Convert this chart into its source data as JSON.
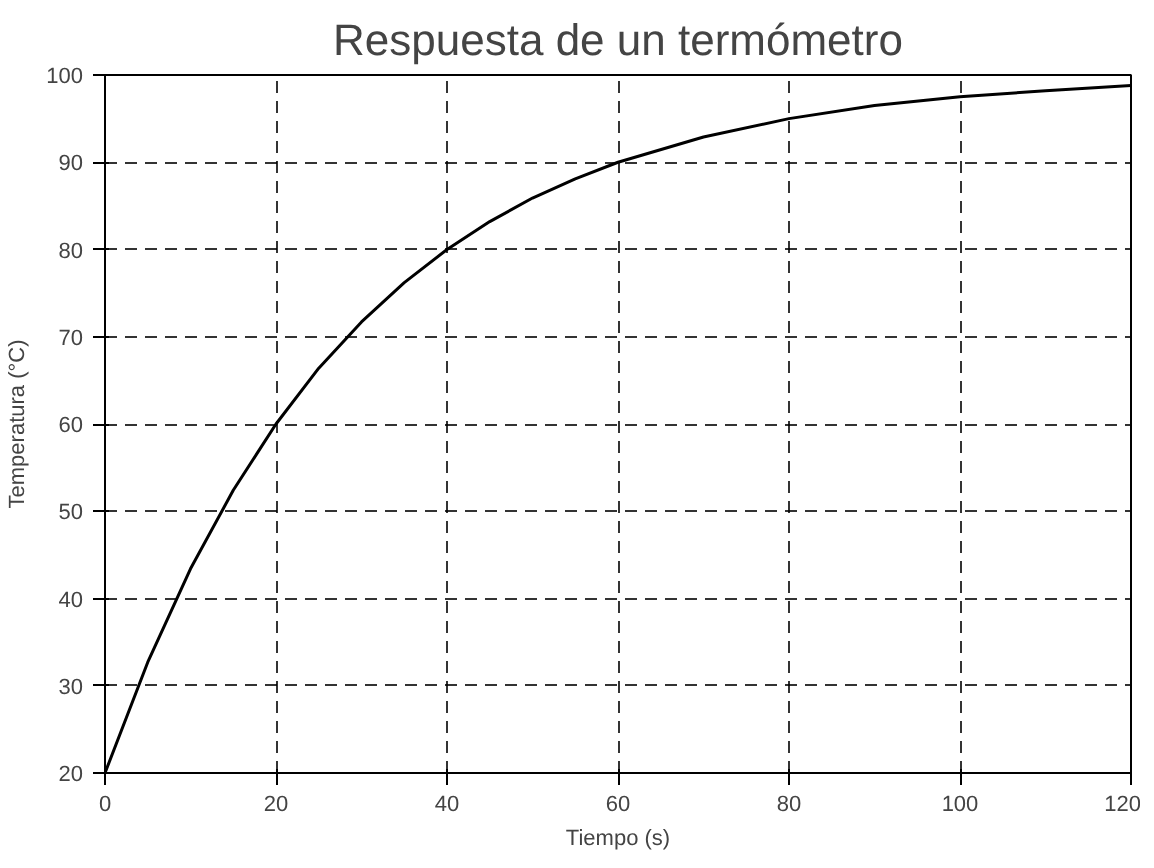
{
  "chart_data": {
    "type": "line",
    "title": "Respuesta de un termómetro",
    "xlabel": "Tiempo (s)",
    "ylabel": "Temperatura (°C)",
    "x": [
      0,
      5,
      10,
      15,
      20,
      25,
      30,
      35,
      40,
      45,
      50,
      55,
      60,
      70,
      80,
      90,
      100,
      110,
      120
    ],
    "series": [
      {
        "color": "#000000",
        "values": [
          20,
          32.7,
          43.4,
          52.4,
          60,
          66.4,
          71.7,
          76.2,
          80,
          83.2,
          85.9,
          88.1,
          90,
          92.9,
          95,
          96.5,
          97.5,
          98.2,
          98.8
        ]
      }
    ],
    "xlim": [
      0,
      120
    ],
    "ylim": [
      20,
      100
    ],
    "xticks": [
      0,
      20,
      40,
      60,
      80,
      100,
      120
    ],
    "yticks": [
      20,
      30,
      40,
      50,
      60,
      70,
      80,
      90,
      100
    ],
    "grid": true,
    "marker": "none",
    "line_style": "solid"
  }
}
